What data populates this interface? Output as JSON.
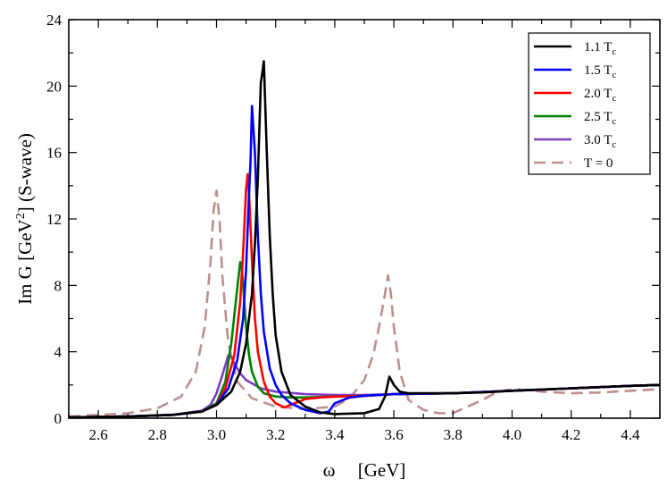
{
  "chart_data": {
    "type": "line",
    "xlabel_parts": [
      "ω",
      "[GeV]"
    ],
    "ylabel_parts": [
      "Im G [GeV",
      "2",
      "] (S-wave)"
    ],
    "xlim": [
      2.5,
      4.5
    ],
    "ylim": [
      0,
      24
    ],
    "x_ticks": [
      2.6,
      2.8,
      3.0,
      3.2,
      3.4,
      3.6,
      3.8,
      4.0,
      4.2,
      4.4
    ],
    "x_tick_labels": [
      "2.6",
      "2.8",
      "3.0",
      "3.2",
      "3.4",
      "3.6",
      "3.8",
      "4.0",
      "4.2",
      "4.4"
    ],
    "y_ticks": [
      0,
      4,
      8,
      12,
      16,
      20,
      24
    ],
    "y_tick_labels": [
      "0",
      "4",
      "8",
      "12",
      "16",
      "20",
      "24"
    ],
    "grid": false,
    "legend_position": "top-right",
    "series": [
      {
        "legend_main": "1.1 T",
        "legend_sub": "c",
        "color": "#000000",
        "dashed": false,
        "x": [
          2.5,
          2.7,
          2.85,
          2.95,
          3.0,
          3.05,
          3.08,
          3.1,
          3.12,
          3.13,
          3.14,
          3.15,
          3.155,
          3.16,
          3.17,
          3.18,
          3.19,
          3.2,
          3.22,
          3.25,
          3.3,
          3.35,
          3.4,
          3.5,
          3.55,
          3.57,
          3.585,
          3.6,
          3.62,
          3.65,
          3.7,
          3.8,
          3.9,
          4.0,
          4.2,
          4.4,
          4.5
        ],
        "y": [
          0.05,
          0.1,
          0.2,
          0.4,
          0.8,
          1.6,
          2.8,
          4.5,
          7.5,
          10.5,
          14.5,
          20.2,
          20.8,
          21.5,
          16.0,
          11.0,
          7.5,
          5.0,
          2.8,
          1.4,
          0.7,
          0.35,
          0.25,
          0.3,
          0.55,
          1.3,
          2.5,
          2.0,
          1.6,
          1.5,
          1.5,
          1.5,
          1.55,
          1.65,
          1.8,
          1.95,
          2.0
        ]
      },
      {
        "legend_main": "1.5 T",
        "legend_sub": "c",
        "color": "#0000ff",
        "dashed": false,
        "x": [
          2.5,
          2.7,
          2.85,
          2.95,
          3.0,
          3.04,
          3.07,
          3.09,
          3.1,
          3.11,
          3.115,
          3.12,
          3.13,
          3.14,
          3.15,
          3.16,
          3.18,
          3.2,
          3.22,
          3.25,
          3.3,
          3.35,
          3.38,
          3.4,
          3.45,
          3.5,
          3.6,
          3.8,
          4.0,
          4.2,
          4.4,
          4.5
        ],
        "y": [
          0.05,
          0.1,
          0.2,
          0.4,
          0.8,
          1.8,
          3.5,
          6.0,
          9.0,
          13.5,
          15.5,
          18.8,
          16.0,
          11.0,
          7.5,
          5.2,
          3.0,
          2.0,
          1.4,
          0.9,
          0.5,
          0.3,
          0.4,
          0.9,
          1.25,
          1.35,
          1.45,
          1.5,
          1.65,
          1.8,
          1.95,
          2.0
        ]
      },
      {
        "legend_main": "2.0 T",
        "legend_sub": "c",
        "color": "#ff0000",
        "dashed": false,
        "x": [
          2.5,
          2.7,
          2.85,
          2.95,
          3.0,
          3.03,
          3.06,
          3.08,
          3.09,
          3.1,
          3.105,
          3.11,
          3.12,
          3.13,
          3.14,
          3.16,
          3.18,
          3.2,
          3.23,
          3.25,
          3.28,
          3.3,
          3.35,
          3.4,
          3.5,
          3.6,
          3.8,
          4.0,
          4.2,
          4.4,
          4.5
        ],
        "y": [
          0.05,
          0.1,
          0.2,
          0.4,
          0.8,
          1.8,
          3.8,
          7.0,
          10.0,
          13.8,
          14.7,
          13.5,
          9.5,
          6.0,
          4.0,
          2.2,
          1.3,
          0.9,
          0.65,
          0.8,
          1.0,
          1.15,
          1.25,
          1.3,
          1.35,
          1.45,
          1.5,
          1.65,
          1.8,
          1.95,
          2.0
        ]
      },
      {
        "legend_main": "2.5 T",
        "legend_sub": "c",
        "color": "#008000",
        "dashed": false,
        "x": [
          2.5,
          2.7,
          2.85,
          2.95,
          3.0,
          3.03,
          3.05,
          3.07,
          3.08,
          3.085,
          3.09,
          3.1,
          3.11,
          3.12,
          3.14,
          3.16,
          3.2,
          3.25,
          3.3,
          3.4,
          3.5,
          3.6,
          3.8,
          4.0,
          4.2,
          4.4,
          4.5
        ],
        "y": [
          0.05,
          0.1,
          0.2,
          0.4,
          0.9,
          2.2,
          4.5,
          7.8,
          9.4,
          9.1,
          8.0,
          5.5,
          3.8,
          2.8,
          1.9,
          1.5,
          1.3,
          1.25,
          1.25,
          1.3,
          1.35,
          1.45,
          1.5,
          1.65,
          1.8,
          1.95,
          2.0
        ]
      },
      {
        "legend_main": "3.0 T",
        "legend_sub": "c",
        "color": "#7b3fc4",
        "dashed": false,
        "x": [
          2.5,
          2.7,
          2.85,
          2.95,
          2.98,
          3.0,
          3.02,
          3.04,
          3.05,
          3.06,
          3.08,
          3.1,
          3.15,
          3.2,
          3.3,
          3.4,
          3.5,
          3.6,
          3.8,
          4.0,
          4.2,
          4.4,
          4.5
        ],
        "y": [
          0.05,
          0.1,
          0.2,
          0.45,
          0.8,
          1.5,
          2.6,
          3.8,
          3.7,
          3.3,
          2.7,
          2.3,
          1.8,
          1.6,
          1.45,
          1.4,
          1.4,
          1.45,
          1.5,
          1.65,
          1.8,
          1.95,
          2.0
        ]
      },
      {
        "legend_main": "T = 0",
        "legend_sub": "",
        "color": "#bc8f8f",
        "dashed": true,
        "x": [
          2.5,
          2.7,
          2.8,
          2.88,
          2.93,
          2.96,
          2.98,
          2.99,
          3.0,
          3.01,
          3.02,
          3.04,
          3.07,
          3.12,
          3.2,
          3.3,
          3.4,
          3.45,
          3.5,
          3.53,
          3.55,
          3.57,
          3.58,
          3.59,
          3.6,
          3.62,
          3.65,
          3.7,
          3.75,
          3.8,
          3.9,
          3.95,
          4.0,
          4.05,
          4.1,
          4.2,
          4.3,
          4.4,
          4.5
        ],
        "y": [
          0.1,
          0.3,
          0.6,
          1.3,
          2.8,
          5.5,
          9.5,
          12.5,
          13.7,
          12.0,
          8.5,
          4.5,
          2.2,
          1.2,
          0.7,
          0.55,
          0.7,
          1.2,
          2.3,
          3.8,
          5.5,
          7.5,
          8.6,
          7.5,
          5.5,
          2.8,
          1.1,
          0.5,
          0.3,
          0.3,
          1.1,
          1.6,
          1.75,
          1.7,
          1.6,
          1.5,
          1.55,
          1.65,
          1.75
        ]
      }
    ]
  }
}
